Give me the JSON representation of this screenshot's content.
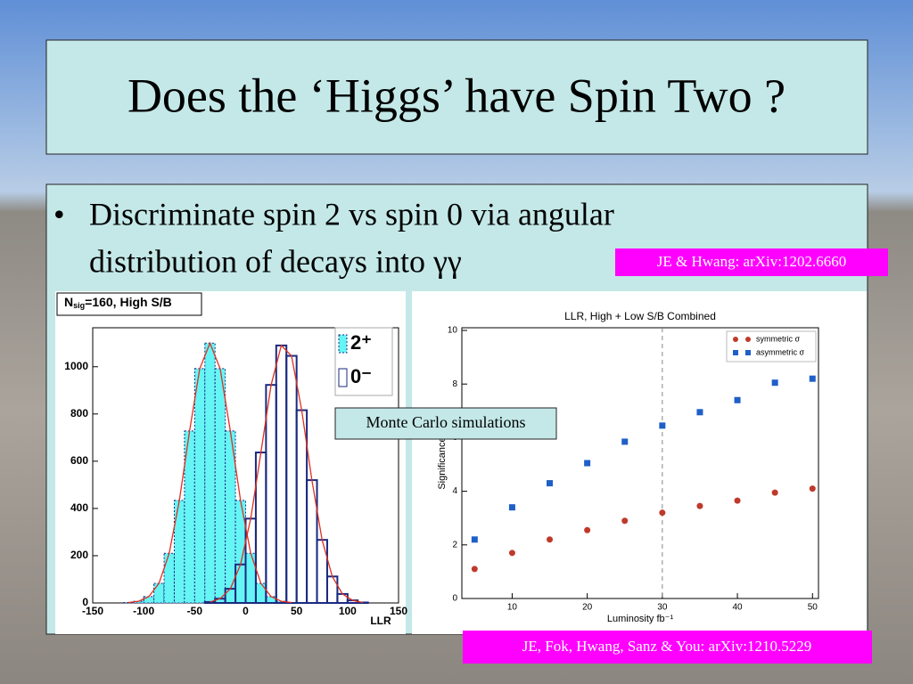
{
  "header": {
    "title": "Does the ‘Higgs’ have Spin Two ?"
  },
  "bullet": {
    "lines": [
      "Discriminate spin 2 vs spin 0 via angular",
      "distribution of decays into γγ"
    ]
  },
  "references": [
    "JE & Hwang: arXiv:1202.6660",
    "JE, Fok, Hwang, Sanz & You: arXiv:1210.5229"
  ],
  "callout": "Monte Carlo simulations",
  "chart_data": [
    {
      "type": "histogram",
      "title_parts": [
        "N",
        "sig",
        "=160, High S/B"
      ],
      "x_label": "LLR",
      "bins": [
        -150,
        -140,
        -130,
        -120,
        -110,
        -100,
        -90,
        -80,
        -70,
        -60,
        -50,
        -40,
        -30,
        -20,
        -10,
        0,
        10,
        20,
        30,
        40,
        50,
        60,
        70,
        80,
        90,
        100,
        110,
        120,
        130,
        140,
        150
      ],
      "series": [
        {
          "name": "2⁺",
          "color": "#66f5f5",
          "filled": true,
          "values": [
            0,
            0,
            0,
            2,
            7,
            27,
            83,
            210,
            434,
            728,
            992,
            1100,
            992,
            728,
            434,
            210,
            83,
            27,
            7,
            2,
            0,
            0,
            0,
            0,
            0,
            0,
            0,
            0,
            0,
            0
          ]
        },
        {
          "name": "0⁻",
          "color": "#1a2a80",
          "filled": false,
          "values": [
            0,
            0,
            0,
            0,
            0,
            0,
            0,
            0,
            0,
            0,
            0,
            4,
            18,
            60,
            163,
            357,
            637,
            923,
            1090,
            1046,
            816,
            520,
            267,
            112,
            38,
            11,
            2,
            0,
            0,
            0
          ]
        }
      ],
      "fits": [
        {
          "color": "#e03020",
          "x": [
            -115,
            -105,
            -95,
            -85,
            -75,
            -65,
            -55,
            -45,
            -35,
            -25,
            -15,
            -5,
            5,
            15,
            25,
            35,
            45
          ],
          "values": [
            2,
            7,
            27,
            83,
            210,
            434,
            728,
            992,
            1100,
            992,
            728,
            434,
            210,
            83,
            27,
            7,
            2
          ]
        },
        {
          "color": "#e03020",
          "x": [
            -35,
            -25,
            -15,
            -5,
            5,
            15,
            25,
            35,
            45,
            55,
            65,
            75,
            85,
            95,
            105,
            115
          ],
          "values": [
            4,
            18,
            60,
            163,
            357,
            637,
            923,
            1090,
            1046,
            816,
            520,
            267,
            112,
            38,
            11,
            2
          ]
        }
      ],
      "xlim": [
        -150,
        150
      ],
      "xticks": [
        -150,
        -100,
        -50,
        0,
        50,
        100,
        150
      ],
      "ylim": [
        0,
        1165
      ],
      "yticks": [
        0,
        200,
        400,
        600,
        800,
        1000
      ]
    },
    {
      "type": "scatter",
      "title": "LLR, High + Low S/B Combined",
      "x_label": "Luminosity fb⁻¹",
      "y_label": "Significance",
      "x": [
        5,
        10,
        15,
        20,
        25,
        30,
        35,
        40,
        45,
        50
      ],
      "series": [
        {
          "name": "symmetric σ",
          "color": "#c0392b",
          "marker": "circle",
          "values": [
            1.1,
            1.7,
            2.2,
            2.55,
            2.9,
            3.2,
            3.45,
            3.65,
            3.95,
            4.1
          ]
        },
        {
          "name": "asymmetric σ",
          "color": "#1f5fc8",
          "marker": "square",
          "values": [
            2.2,
            3.4,
            4.3,
            5.05,
            5.85,
            6.45,
            6.95,
            7.4,
            8.05,
            8.2
          ]
        }
      ],
      "vline": 30,
      "xlim": [
        3.3,
        50.8
      ],
      "xticks": [
        10,
        20,
        30,
        40,
        50
      ],
      "ylim": [
        0,
        10.1
      ],
      "yticks": [
        0,
        2,
        4,
        6,
        8,
        10
      ]
    }
  ]
}
